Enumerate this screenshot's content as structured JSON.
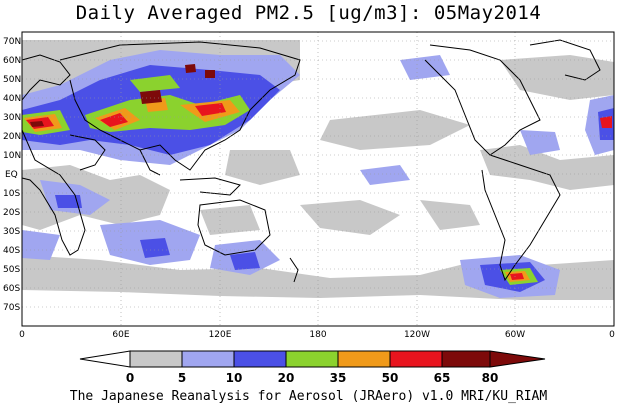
{
  "title": "Daily Averaged PM2.5 [ug/m3]: 05May2014",
  "caption": "The Japanese Reanalysis for Aerosol (JRAero) v1.0 MRI/KU_RIAM",
  "lat_labels": [
    "70N",
    "60N",
    "50N",
    "40N",
    "30N",
    "20N",
    "10N",
    "EQ",
    "10S",
    "20S",
    "30S",
    "40S",
    "50S",
    "60S",
    "70S"
  ],
  "lon_labels": [
    "0",
    "60E",
    "120E",
    "180",
    "120W",
    "60W",
    "0"
  ],
  "colorbar": {
    "ticks": [
      "0",
      "5",
      "10",
      "20",
      "35",
      "50",
      "65",
      "80"
    ],
    "colors": [
      "#ffffff",
      "#c8c8c8",
      "#a0a6f0",
      "#4b50e6",
      "#8bd22e",
      "#f09a1a",
      "#e8141e",
      "#7d0a0a"
    ]
  }
}
